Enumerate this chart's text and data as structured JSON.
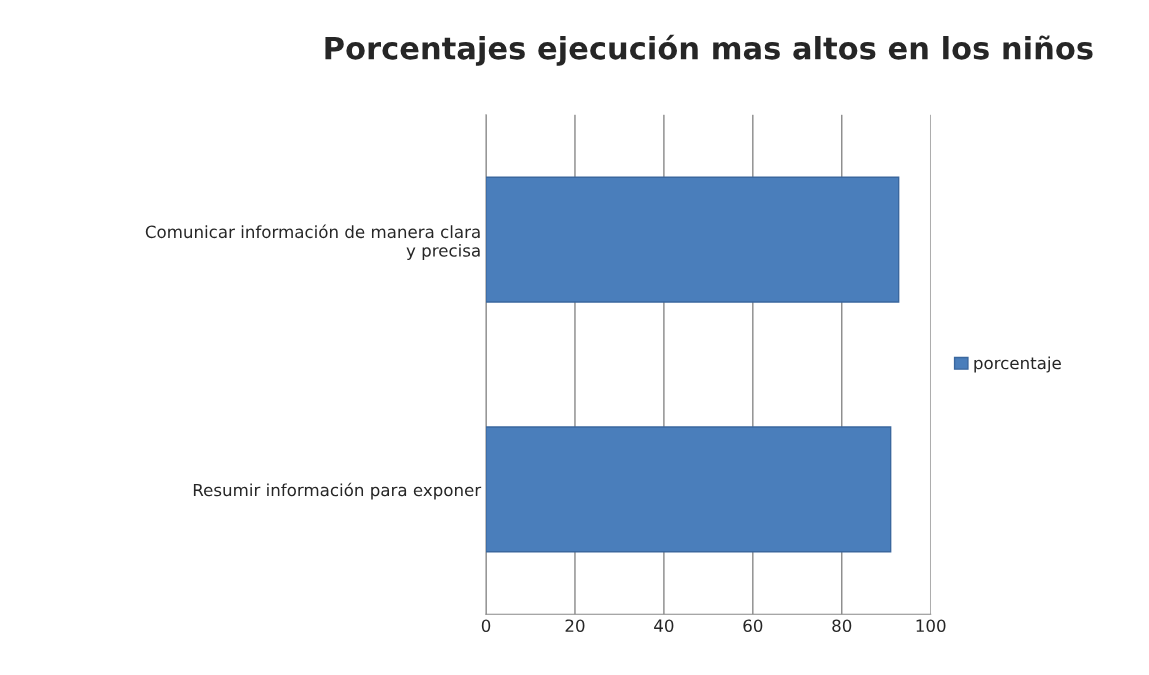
{
  "chart_data": {
    "type": "bar",
    "title": "Porcentajes ejecución mas altos en los niños",
    "orientation": "horizontal",
    "categories": [
      "Comunicar información de manera clara\ny precisa",
      "Resumir información para exponer"
    ],
    "series": [
      {
        "name": "porcentaje",
        "color": "#4a7ebb",
        "values": [
          92.8,
          91.0
        ]
      }
    ],
    "xlim": [
      0,
      100
    ],
    "xticks": [
      0,
      20,
      40,
      60,
      80,
      100
    ],
    "grid": "x",
    "legend": "right"
  }
}
